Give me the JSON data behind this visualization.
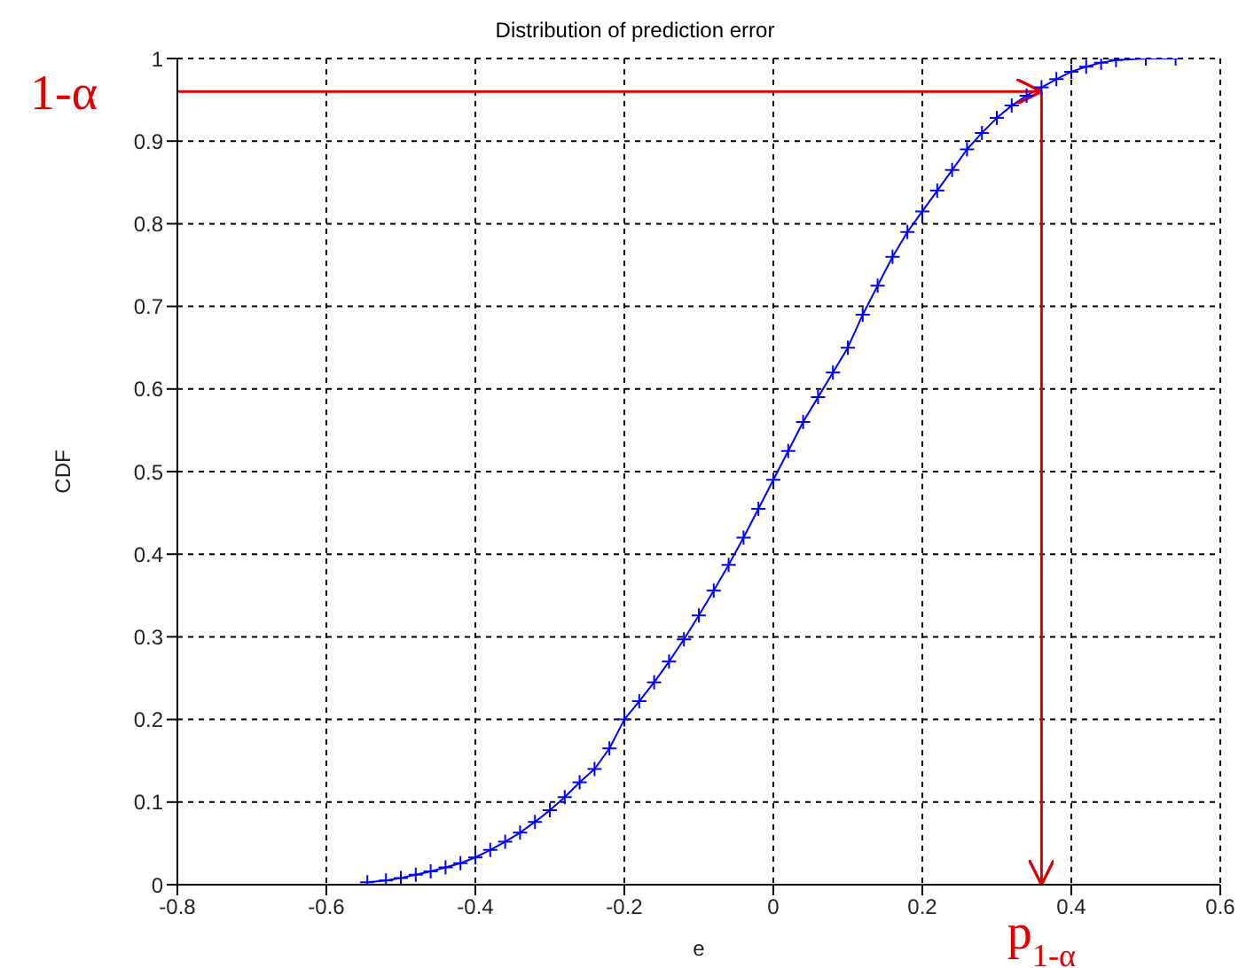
{
  "chart_data": {
    "type": "line",
    "title": "Distribution of prediction error",
    "xlabel": "e",
    "ylabel": "CDF",
    "series": [
      {
        "color": "#0000ff",
        "x": [
          -0.545,
          -0.52,
          -0.5,
          -0.48,
          -0.46,
          -0.44,
          -0.42,
          -0.4,
          -0.38,
          -0.36,
          -0.34,
          -0.32,
          -0.3,
          -0.28,
          -0.26,
          -0.24,
          -0.22,
          -0.2,
          -0.18,
          -0.16,
          -0.14,
          -0.12,
          -0.1,
          -0.08,
          -0.06,
          -0.04,
          -0.02,
          0,
          0.02,
          0.04,
          0.06,
          0.08,
          0.1,
          0.12,
          0.14,
          0.16,
          0.18,
          0.2,
          0.22,
          0.24,
          0.26,
          0.28,
          0.3,
          0.32,
          0.34,
          0.36,
          0.38,
          0.4,
          0.42,
          0.44,
          0.46,
          0.5,
          0.54
        ],
        "values": [
          0.003,
          0.005,
          0.008,
          0.012,
          0.016,
          0.021,
          0.026,
          0.033,
          0.042,
          0.052,
          0.063,
          0.076,
          0.09,
          0.106,
          0.124,
          0.14,
          0.165,
          0.2,
          0.222,
          0.245,
          0.27,
          0.297,
          0.326,
          0.356,
          0.387,
          0.42,
          0.455,
          0.49,
          0.525,
          0.56,
          0.59,
          0.62,
          0.65,
          0.69,
          0.725,
          0.76,
          0.79,
          0.815,
          0.84,
          0.865,
          0.89,
          0.91,
          0.928,
          0.943,
          0.955,
          0.965,
          0.975,
          0.984,
          0.99,
          0.995,
          0.998,
          1,
          1
        ]
      }
    ],
    "xlim": [
      -0.8,
      0.6
    ],
    "xticks": [
      -0.8,
      -0.6,
      -0.4,
      -0.2,
      0,
      0.2,
      0.4,
      0.6
    ],
    "ylim": [
      0,
      1
    ],
    "yticks": [
      0,
      0.1,
      0.2,
      0.3,
      0.4,
      0.5,
      0.6,
      0.7,
      0.8,
      0.9,
      1
    ],
    "grid": true,
    "marker": "cross",
    "line_style": "solid",
    "ref_lines": [
      {
        "axis": "y",
        "value": 0.96,
        "label": "1-α",
        "color": "#e00000"
      },
      {
        "axis": "x",
        "value": 0.36,
        "label": "p$_{1-α}$",
        "color": "#e00000"
      }
    ]
  }
}
